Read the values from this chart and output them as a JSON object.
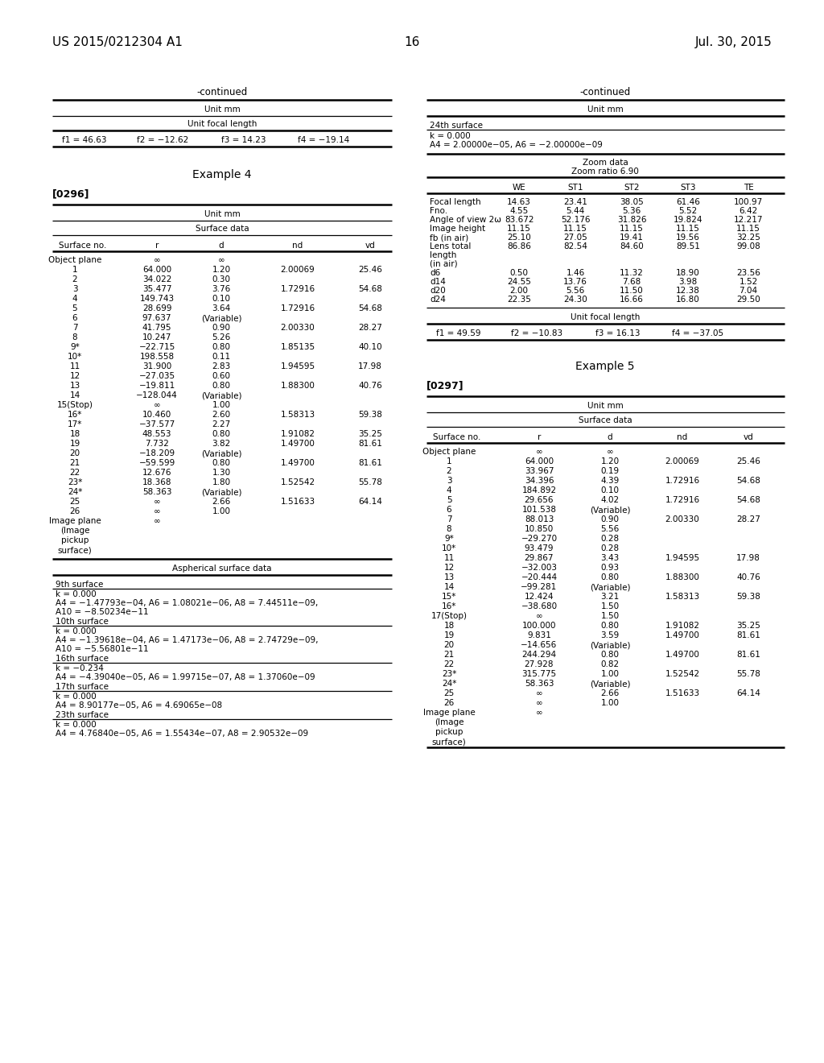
{
  "page_header_left": "US 2015/0212304 A1",
  "page_header_right": "Jul. 30, 2015",
  "page_number": "16",
  "bg_color": "#ffffff",
  "left_col": {
    "continued_label": "-continued",
    "unit_mm": "Unit mm",
    "unit_focal": "Unit focal length",
    "focal_vals": [
      "f1 = 46.63",
      "f2 = −12.62",
      "f3 = 14.23",
      "f4 = −19.14"
    ],
    "example_title": "Example 4",
    "paragraph_tag": "[0296]",
    "surface_unit": "Unit mm",
    "surface_data_header": "Surface data",
    "surface_cols": [
      "Surface no.",
      "r",
      "d",
      "nd",
      "vd"
    ],
    "surface_rows": [
      [
        "Object plane",
        "∞",
        "∞",
        "",
        ""
      ],
      [
        "1",
        "64.000",
        "1.20",
        "2.00069",
        "25.46"
      ],
      [
        "2",
        "34.022",
        "0.30",
        "",
        ""
      ],
      [
        "3",
        "35.477",
        "3.76",
        "1.72916",
        "54.68"
      ],
      [
        "4",
        "149.743",
        "0.10",
        "",
        ""
      ],
      [
        "5",
        "28.699",
        "3.64",
        "1.72916",
        "54.68"
      ],
      [
        "6",
        "97.637",
        "(Variable)",
        "",
        ""
      ],
      [
        "7",
        "41.795",
        "0.90",
        "2.00330",
        "28.27"
      ],
      [
        "8",
        "10.247",
        "5.26",
        "",
        ""
      ],
      [
        "9*",
        "−22.715",
        "0.80",
        "1.85135",
        "40.10"
      ],
      [
        "10*",
        "198.558",
        "0.11",
        "",
        ""
      ],
      [
        "11",
        "31.900",
        "2.83",
        "1.94595",
        "17.98"
      ],
      [
        "12",
        "−27.035",
        "0.60",
        "",
        ""
      ],
      [
        "13",
        "−19.811",
        "0.80",
        "1.88300",
        "40.76"
      ],
      [
        "14",
        "−128.044",
        "(Variable)",
        "",
        ""
      ],
      [
        "15(Stop)",
        "∞",
        "1.00",
        "",
        ""
      ],
      [
        "16*",
        "10.460",
        "2.60",
        "1.58313",
        "59.38"
      ],
      [
        "17*",
        "−37.577",
        "2.27",
        "",
        ""
      ],
      [
        "18",
        "48.553",
        "0.80",
        "1.91082",
        "35.25"
      ],
      [
        "19",
        "7.732",
        "3.82",
        "1.49700",
        "81.61"
      ],
      [
        "20",
        "−18.209",
        "(Variable)",
        "",
        ""
      ],
      [
        "21",
        "−59.599",
        "0.80",
        "1.49700",
        "81.61"
      ],
      [
        "22",
        "12.676",
        "1.30",
        "",
        ""
      ],
      [
        "23*",
        "18.368",
        "1.80",
        "1.52542",
        "55.78"
      ],
      [
        "24*",
        "58.363",
        "(Variable)",
        "",
        ""
      ],
      [
        "25",
        "∞",
        "2.66",
        "1.51633",
        "64.14"
      ],
      [
        "26",
        "∞",
        "1.00",
        "",
        ""
      ],
      [
        "Image plane",
        "∞",
        "",
        "",
        ""
      ],
      [
        "(Image",
        "",
        "",
        "",
        ""
      ],
      [
        "pickup",
        "",
        "",
        "",
        ""
      ],
      [
        "surface)",
        "",
        "",
        "",
        ""
      ]
    ],
    "aspherical_header": "Aspherical surface data",
    "aspherical_sections": [
      {
        "title": "9th surface",
        "lines": [
          "k = 0.000",
          "A4 = −1.47793e−04, A6 = 1.08021e−06, A8 = 7.44511e−09,",
          "A10 = −8.50234e−11"
        ]
      },
      {
        "title": "10th surface",
        "lines": [
          "k = 0.000",
          "A4 = −1.39618e−04, A6 = 1.47173e−06, A8 = 2.74729e−09,",
          "A10 = −5.56801e−11"
        ]
      },
      {
        "title": "16th surface",
        "lines": [
          "k = −0.234",
          "A4 = −4.39040e−05, A6 = 1.99715e−07, A8 = 1.37060e−09"
        ]
      },
      {
        "title": "17th surface",
        "lines": [
          "k = 0.000",
          "A4 = 8.90177e−05, A6 = 4.69065e−08"
        ]
      },
      {
        "title": "23th surface",
        "lines": [
          "k = 0.000",
          "A4 = 4.76840e−05, A6 = 1.55434e−07, A8 = 2.90532e−09"
        ]
      }
    ]
  },
  "right_col": {
    "continued_label": "-continued",
    "unit_mm": "Unit mm",
    "surface_24th": "24th surface",
    "aspherical_24th_lines": [
      "k = 0.000",
      "A4 = 2.00000e−05, A6 = −2.00000e−09"
    ],
    "zoom_data_title": "Zoom data",
    "zoom_ratio": "Zoom ratio 6.90",
    "zoom_cols": [
      "",
      "WE",
      "ST1",
      "ST2",
      "ST3",
      "TE"
    ],
    "zoom_rows": [
      [
        "Focal length",
        "14.63",
        "23.41",
        "38.05",
        "61.46",
        "100.97"
      ],
      [
        "Fno.",
        "4.55",
        "5.44",
        "5.36",
        "5.52",
        "6.42"
      ],
      [
        "Angle of view 2ω",
        "83.672",
        "52.176",
        "31.826",
        "19.824",
        "12.217"
      ],
      [
        "Image height",
        "11.15",
        "11.15",
        "11.15",
        "11.15",
        "11.15"
      ],
      [
        "fb (in air)",
        "25.10",
        "27.05",
        "19.41",
        "19.56",
        "32.25"
      ],
      [
        "Lens total",
        "86.86",
        "82.54",
        "84.60",
        "89.51",
        "99.08"
      ],
      [
        "length",
        "",
        "",
        "",
        "",
        ""
      ],
      [
        "(in air)",
        "",
        "",
        "",
        "",
        ""
      ],
      [
        "d6",
        "0.50",
        "1.46",
        "11.32",
        "18.90",
        "23.56"
      ],
      [
        "d14",
        "24.55",
        "13.76",
        "7.68",
        "3.98",
        "1.52"
      ],
      [
        "d20",
        "2.00",
        "5.56",
        "11.50",
        "12.38",
        "7.04"
      ],
      [
        "d24",
        "22.35",
        "24.30",
        "16.66",
        "16.80",
        "29.50"
      ]
    ],
    "unit_focal": "Unit focal length",
    "focal_vals": [
      "f1 = 49.59",
      "f2 = −10.83",
      "f3 = 16.13",
      "f4 = −37.05"
    ],
    "example5_title": "Example 5",
    "paragraph_tag": "[0297]",
    "surface_unit": "Unit mm",
    "surface_data_header": "Surface data",
    "surface_cols": [
      "Surface no.",
      "r",
      "d",
      "nd",
      "vd"
    ],
    "surface_rows": [
      [
        "Object plane",
        "∞",
        "∞",
        "",
        ""
      ],
      [
        "1",
        "64.000",
        "1.20",
        "2.00069",
        "25.46"
      ],
      [
        "2",
        "33.967",
        "0.19",
        "",
        ""
      ],
      [
        "3",
        "34.396",
        "4.39",
        "1.72916",
        "54.68"
      ],
      [
        "4",
        "184.892",
        "0.10",
        "",
        ""
      ],
      [
        "5",
        "29.656",
        "4.02",
        "1.72916",
        "54.68"
      ],
      [
        "6",
        "101.538",
        "(Variable)",
        "",
        ""
      ],
      [
        "7",
        "88.013",
        "0.90",
        "2.00330",
        "28.27"
      ],
      [
        "8",
        "10.850",
        "5.56",
        "",
        ""
      ],
      [
        "9*",
        "−29.270",
        "0.28",
        "",
        ""
      ],
      [
        "10*",
        "93.479",
        "0.28",
        "",
        ""
      ],
      [
        "11",
        "29.867",
        "3.43",
        "1.94595",
        "17.98"
      ],
      [
        "12",
        "−32.003",
        "0.93",
        "",
        ""
      ],
      [
        "13",
        "−20.444",
        "0.80",
        "1.88300",
        "40.76"
      ],
      [
        "14",
        "−99.281",
        "(Variable)",
        "",
        ""
      ],
      [
        "15*",
        "12.424",
        "3.21",
        "1.58313",
        "59.38"
      ],
      [
        "16*",
        "−38.680",
        "1.50",
        "",
        ""
      ],
      [
        "17(Stop)",
        "∞",
        "1.50",
        "",
        ""
      ],
      [
        "18",
        "100.000",
        "0.80",
        "1.91082",
        "35.25"
      ],
      [
        "19",
        "9.831",
        "3.59",
        "1.49700",
        "81.61"
      ],
      [
        "20",
        "−14.656",
        "(Variable)",
        "",
        ""
      ],
      [
        "21",
        "244.294",
        "0.80",
        "1.49700",
        "81.61"
      ],
      [
        "22",
        "27.928",
        "0.82",
        "",
        ""
      ],
      [
        "23*",
        "315.775",
        "1.00",
        "1.52542",
        "55.78"
      ],
      [
        "24*",
        "58.363",
        "(Variable)",
        "",
        ""
      ],
      [
        "25",
        "∞",
        "2.66",
        "1.51633",
        "64.14"
      ],
      [
        "26",
        "∞",
        "1.00",
        "",
        ""
      ],
      [
        "Image plane",
        "∞",
        "",
        "",
        ""
      ],
      [
        "(Image",
        "",
        "",
        "",
        ""
      ],
      [
        "pickup",
        "",
        "",
        "",
        ""
      ],
      [
        "surface)",
        "",
        "",
        "",
        ""
      ]
    ]
  }
}
